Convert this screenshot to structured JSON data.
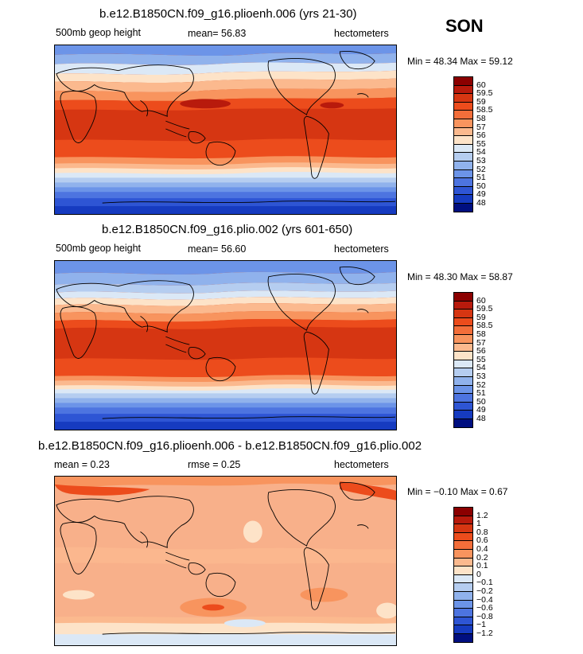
{
  "season": "SON",
  "panels": [
    {
      "title": "b.e12.B1850CN.f09_g16.plioenh.006 (yrs 21-30)",
      "left_label": "500mb geop height",
      "stat1": "mean=  56.83",
      "stat2": "",
      "units": "hectometers",
      "minmax": "Min =  48.34 Max =  59.12",
      "colorbar": {
        "labels": [
          "60",
          "59.5",
          "59",
          "58.5",
          "58",
          "57",
          "56",
          "55",
          "54",
          "53",
          "52",
          "51",
          "50",
          "49",
          "48"
        ],
        "colors": [
          "#8b0000",
          "#b81a0c",
          "#d63612",
          "#ec4c1c",
          "#f36e3a",
          "#f8945e",
          "#fbb98e",
          "#fde3c8",
          "#dbe8f6",
          "#b5cdf0",
          "#90b2ec",
          "#6c94e8",
          "#4d74e0",
          "#2e55d4",
          "#163bc0",
          "#000f80"
        ]
      }
    },
    {
      "title": "b.e12.B1850CN.f09_g16.plio.002 (yrs 601-650)",
      "left_label": "500mb geop height",
      "stat1": "mean=  56.60",
      "stat2": "",
      "units": "hectometers",
      "minmax": "Min =  48.30 Max =  58.87",
      "colorbar": {
        "labels": [
          "60",
          "59.5",
          "59",
          "58.5",
          "58",
          "57",
          "56",
          "55",
          "54",
          "53",
          "52",
          "51",
          "50",
          "49",
          "48"
        ],
        "colors": [
          "#8b0000",
          "#b81a0c",
          "#d63612",
          "#ec4c1c",
          "#f36e3a",
          "#f8945e",
          "#fbb98e",
          "#fde3c8",
          "#dbe8f6",
          "#b5cdf0",
          "#90b2ec",
          "#6c94e8",
          "#4d74e0",
          "#2e55d4",
          "#163bc0",
          "#000f80"
        ]
      }
    },
    {
      "title": "b.e12.B1850CN.f09_g16.plioenh.006 - b.e12.B1850CN.f09_g16.plio.002",
      "left_label": "mean =    0.23",
      "stat1": "",
      "stat2": "rmse =    0.25",
      "units": "hectometers",
      "minmax": "Min =  −0.10 Max =    0.67",
      "colorbar": {
        "labels": [
          "1.2",
          "1",
          "0.8",
          "0.6",
          "0.4",
          "0.2",
          "0.1",
          "0",
          "−0.1",
          "−0.2",
          "−0.4",
          "−0.6",
          "−0.8",
          "−1",
          "−1.2"
        ],
        "colors": [
          "#8b0000",
          "#b81a0c",
          "#d63612",
          "#ec4c1c",
          "#f36e3a",
          "#f8945e",
          "#fbb98e",
          "#fde3c8",
          "#dbe8f6",
          "#b5cdf0",
          "#90b2ec",
          "#6c94e8",
          "#4d74e0",
          "#2e55d4",
          "#163bc0",
          "#000f80"
        ]
      }
    }
  ],
  "palette": {
    "map1_bands": [
      "#2e55d4",
      "#4d74e0",
      "#6c94e8",
      "#90b2ec",
      "#b5cdf0",
      "#dbe8f6",
      "#fde3c8",
      "#fbb98e",
      "#f8945e",
      "#ec4c1c",
      "#d63612"
    ],
    "diff_bg": "#f8b08a"
  }
}
